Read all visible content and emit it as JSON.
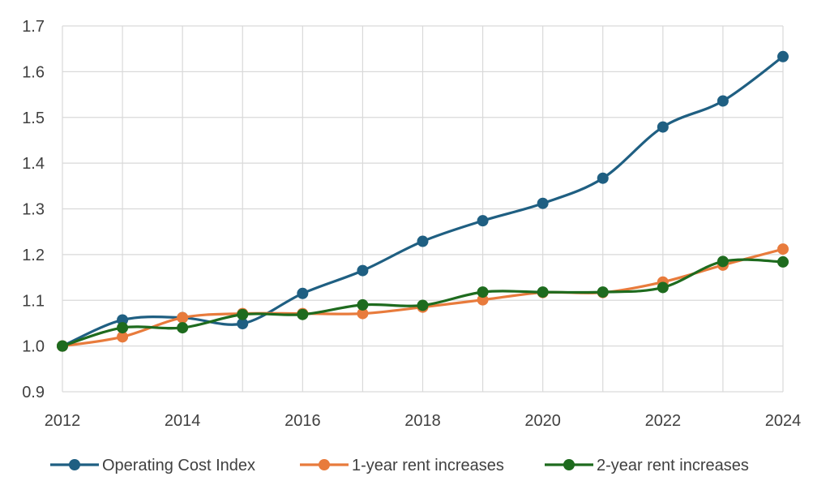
{
  "chart_data": {
    "type": "line",
    "title": "",
    "xlabel": "",
    "ylabel": "",
    "x": [
      2012,
      2013,
      2014,
      2015,
      2016,
      2017,
      2018,
      2019,
      2020,
      2021,
      2022,
      2023,
      2024
    ],
    "xlim": [
      2012,
      2024
    ],
    "ylim": [
      0.9,
      1.7
    ],
    "x_ticks": [
      "2012",
      "2014",
      "2016",
      "2018",
      "2020",
      "2022",
      "2024"
    ],
    "y_ticks": [
      "0.9",
      "1.0",
      "1.1",
      "1.2",
      "1.3",
      "1.4",
      "1.5",
      "1.6",
      "1.7"
    ],
    "grid": "vertical and horizontal",
    "legend_position": "bottom",
    "smooth_lines": true,
    "series": [
      {
        "name": "Operating Cost Index",
        "color": "#1f5f82",
        "values": [
          1.0,
          1.057,
          1.062,
          1.049,
          1.115,
          1.165,
          1.229,
          1.274,
          1.312,
          1.367,
          1.479,
          1.536,
          1.633
        ]
      },
      {
        "name": "1-year rent increases",
        "color": "#e87b3c",
        "values": [
          1.0,
          1.02,
          1.062,
          1.071,
          1.071,
          1.071,
          1.085,
          1.101,
          1.117,
          1.117,
          1.14,
          1.177,
          1.212
        ]
      },
      {
        "name": "2-year rent increases",
        "color": "#1e6b1e",
        "values": [
          1.0,
          1.04,
          1.04,
          1.069,
          1.069,
          1.09,
          1.089,
          1.118,
          1.118,
          1.118,
          1.128,
          1.185,
          1.184
        ]
      }
    ]
  }
}
